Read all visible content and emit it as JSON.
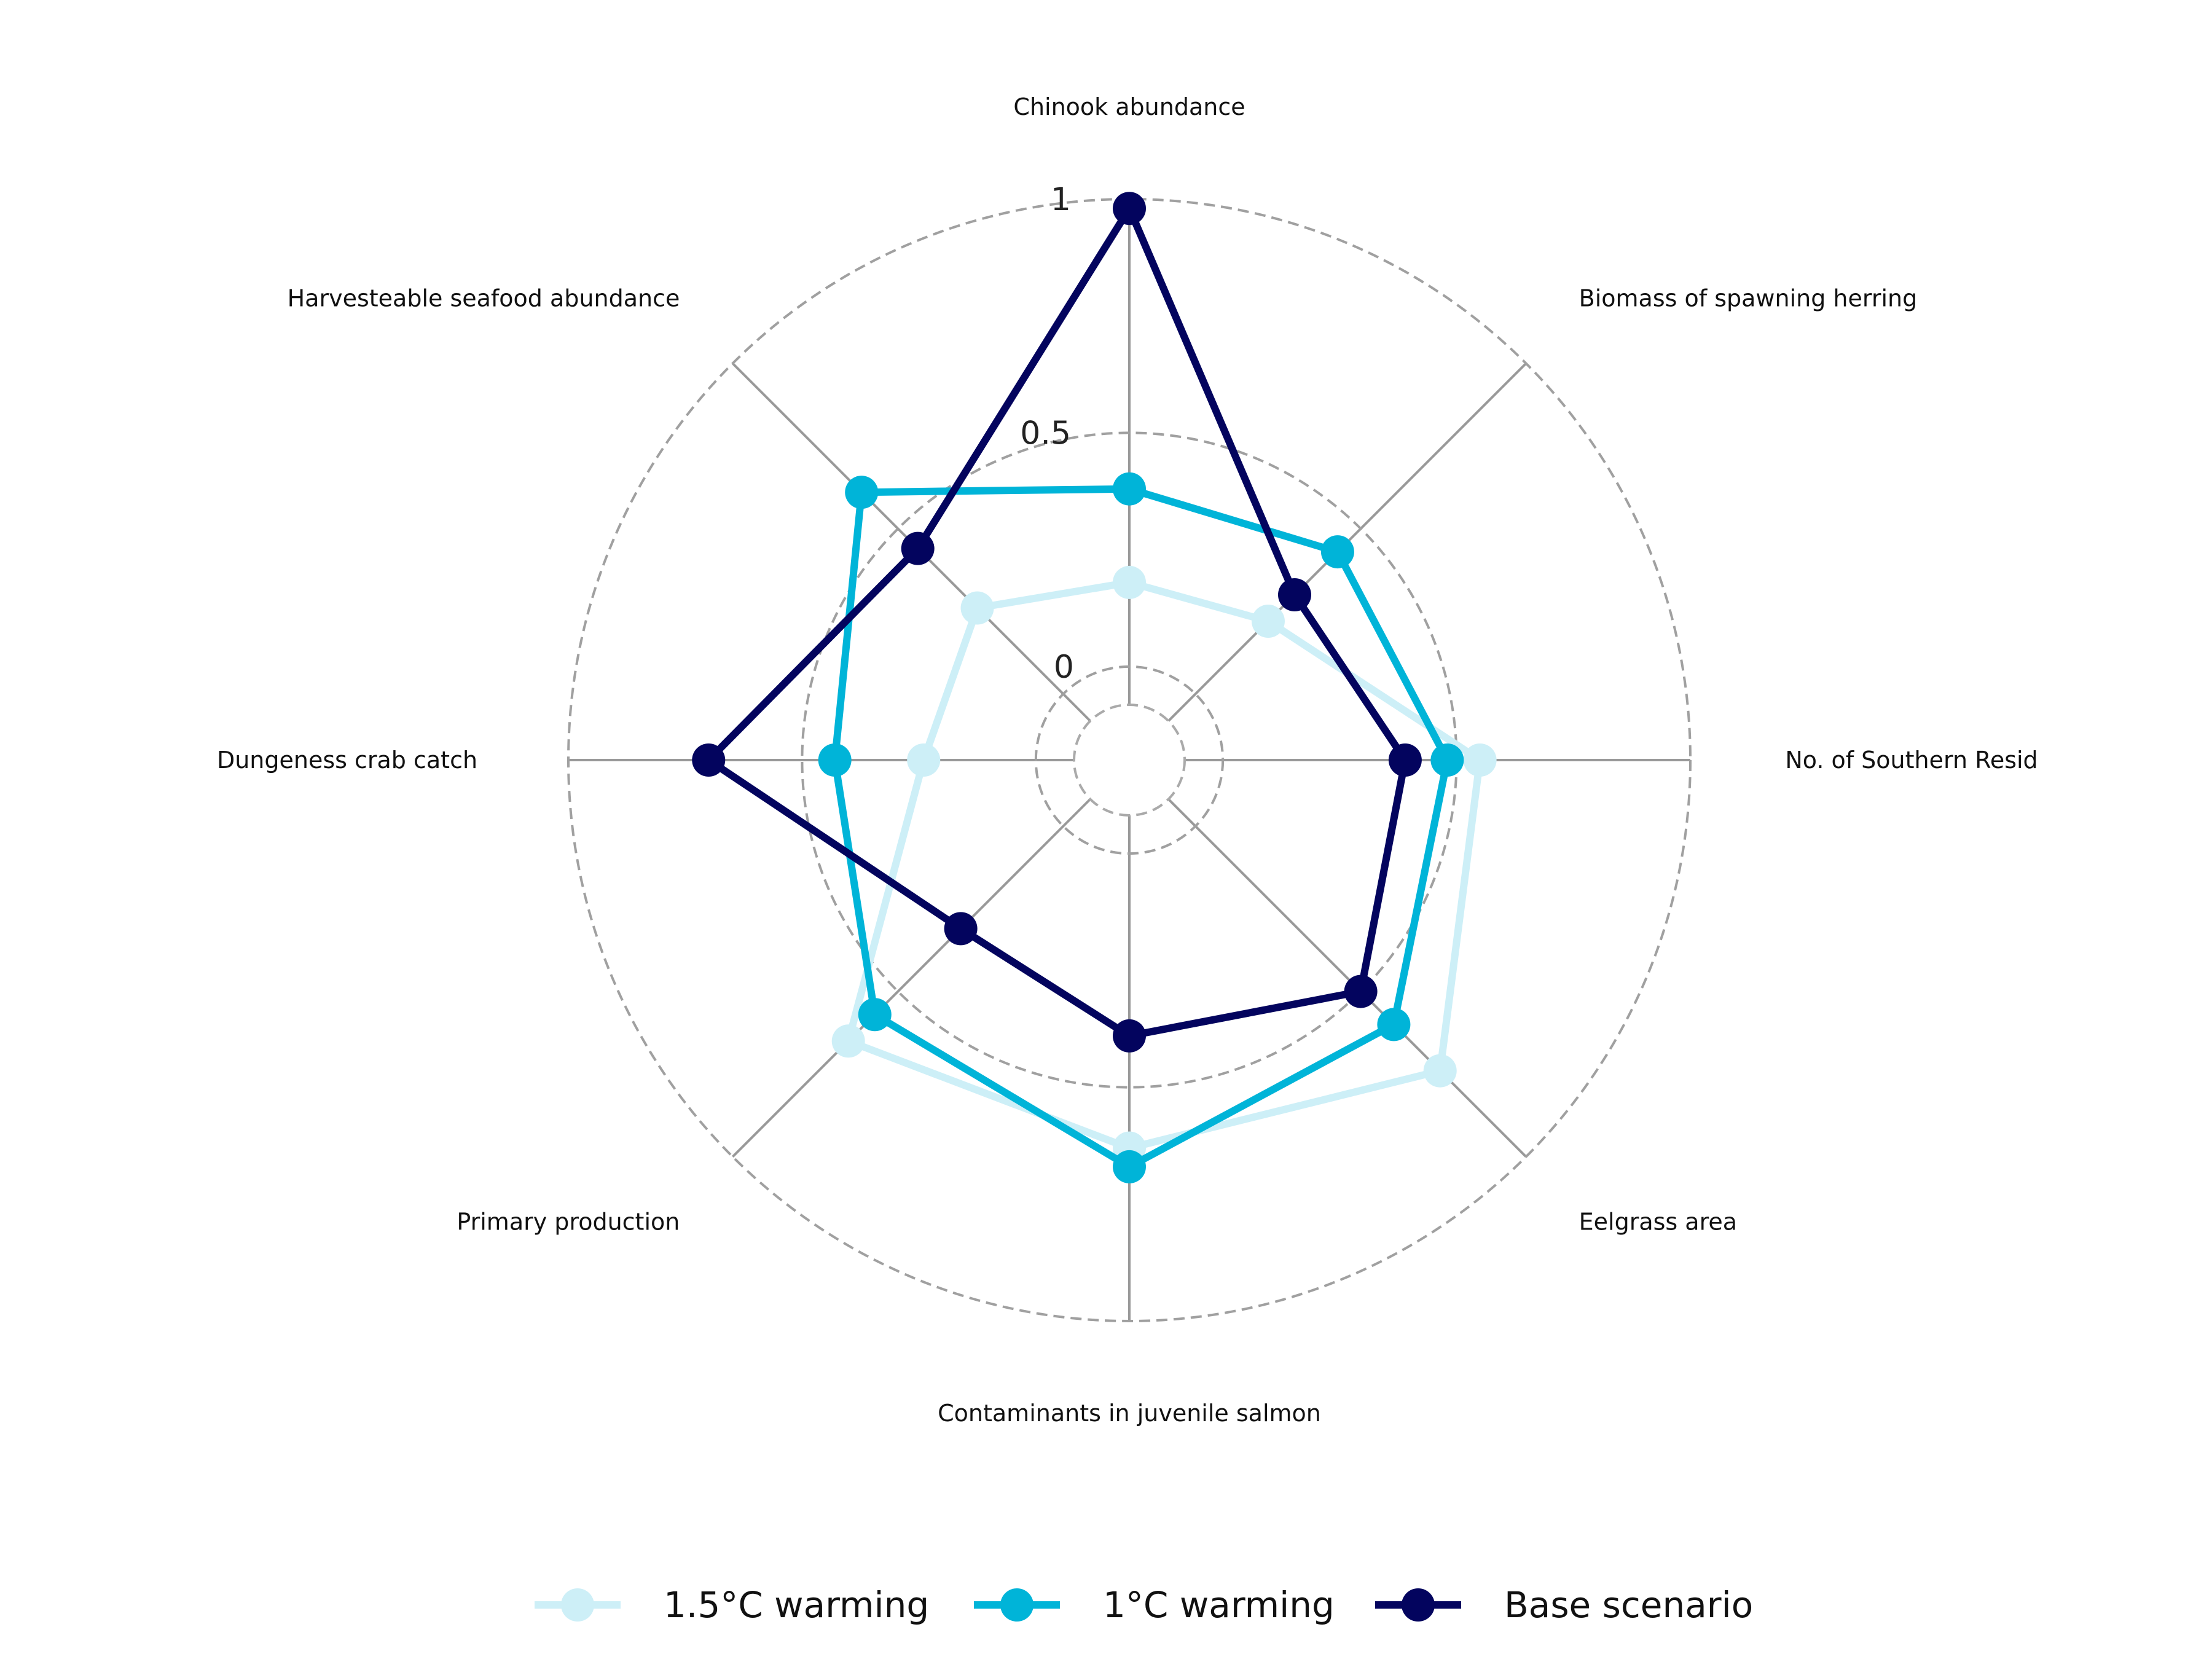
{
  "chart_data": {
    "type": "radar",
    "axes": [
      "Chinook abundance",
      "Biomass of spawning herring",
      "No. of Southern Resid",
      "Eelgrass area",
      "Contaminants in juvenile salmon",
      "Primary production",
      "Dungeness crab catch",
      "Harvesteable seafood abundance"
    ],
    "ticks": [
      {
        "value": 0,
        "label": "0"
      },
      {
        "value": 0.5,
        "label": "0.5"
      },
      {
        "value": 1,
        "label": "1"
      }
    ],
    "rlim": [
      -0.2,
      1.0
    ],
    "series": [
      {
        "name": "1.5°C warming",
        "color": "#cdeff7",
        "values": [
          0.18,
          0.22,
          0.55,
          0.74,
          0.63,
          0.65,
          0.24,
          0.26
        ]
      },
      {
        "name": "1°C warming",
        "color": "#00b4d8",
        "values": [
          0.38,
          0.43,
          0.48,
          0.6,
          0.67,
          0.57,
          0.43,
          0.61
        ]
      },
      {
        "name": "Base scenario",
        "color": "#03045e",
        "values": [
          0.98,
          0.3,
          0.39,
          0.5,
          0.39,
          0.31,
          0.7,
          0.44
        ]
      }
    ],
    "legend_position": "bottom-center"
  }
}
